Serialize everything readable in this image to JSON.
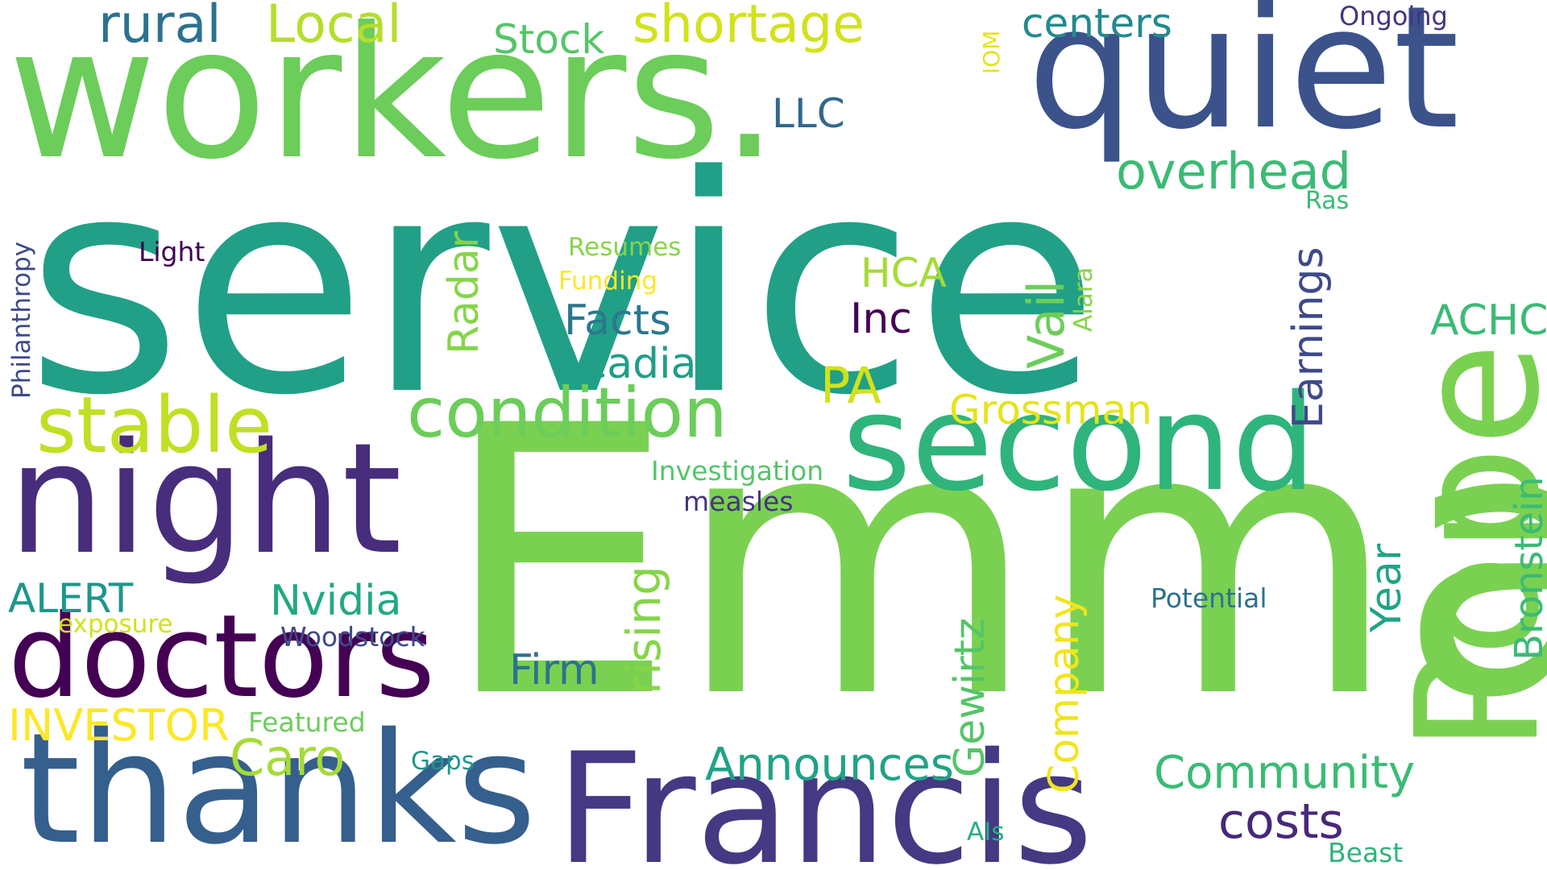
{
  "words": {
    "service": {
      "text": "service",
      "color": "#21a087"
    },
    "emma": {
      "text": "Emma",
      "color": "#7ad151"
    },
    "workers": {
      "text": "workers.",
      "color": "#6ccd5a"
    },
    "quiet": {
      "text": "quiet",
      "color": "#3b528b"
    },
    "night": {
      "text": "night",
      "color": "#472d7b"
    },
    "doctors": {
      "text": "doctors",
      "color": "#440154"
    },
    "thanks": {
      "text": "thanks",
      "color": "#355f8d"
    },
    "francis": {
      "text": "Francis",
      "color": "#443983"
    },
    "second": {
      "text": "second",
      "color": "#2fb47c"
    },
    "pope": {
      "text": "Pope",
      "color": "#7ad151"
    },
    "condition": {
      "text": "condition",
      "color": "#6ccd5a"
    },
    "stable": {
      "text": "stable",
      "color": "#c2df23"
    },
    "rural": {
      "text": "rural",
      "color": "#2c728e"
    },
    "local": {
      "text": "Local",
      "color": "#b5de2b"
    },
    "stock": {
      "text": "Stock",
      "color": "#54c568"
    },
    "shortage": {
      "text": "shortage",
      "color": "#d2e21b"
    },
    "centers": {
      "text": "centers",
      "color": "#23898e"
    },
    "ongoing": {
      "text": "Ongoing",
      "color": "#46337e"
    },
    "iom": {
      "text": "IOM",
      "color": "#e5e419"
    },
    "llc": {
      "text": "LLC",
      "color": "#31688e"
    },
    "overhead": {
      "text": "overhead",
      "color": "#3bbb75"
    },
    "ras": {
      "text": "Ras",
      "color": "#3bbb75"
    },
    "philanthropy": {
      "text": "Philanthropy",
      "color": "#3e4a89"
    },
    "light": {
      "text": "Light",
      "color": "#440154"
    },
    "resumes": {
      "text": "Resumes",
      "color": "#86d549"
    },
    "funding": {
      "text": "Funding",
      "color": "#fde725"
    },
    "radar": {
      "text": "Radar",
      "color": "#86d549"
    },
    "hca": {
      "text": "HCA",
      "color": "#a5db36"
    },
    "vail": {
      "text": "Vail",
      "color": "#6ccd5a"
    },
    "alara": {
      "text": "Alara",
      "color": "#86d549"
    },
    "earnings": {
      "text": "Earnings",
      "color": "#3e4a89"
    },
    "achc": {
      "text": "ACHC",
      "color": "#3bbb75"
    },
    "facts": {
      "text": "Facts",
      "color": "#2a788e"
    },
    "inc": {
      "text": "Inc",
      "color": "#440154"
    },
    "acadia": {
      "text": "Acadia",
      "color": "#1f9e89"
    },
    "pa": {
      "text": "PA",
      "color": "#d2e21b"
    },
    "grossman": {
      "text": "Grossman",
      "color": "#e5e419"
    },
    "bronstein": {
      "text": "Bronstein",
      "color": "#3bbb75"
    },
    "investigation": {
      "text": "Investigation",
      "color": "#54c568"
    },
    "measles": {
      "text": "measles",
      "color": "#46337e"
    },
    "rising": {
      "text": "rising",
      "color": "#86d549"
    },
    "alert": {
      "text": "ALERT",
      "color": "#1f968b"
    },
    "nvidia": {
      "text": "Nvidia",
      "color": "#22a884"
    },
    "exposure": {
      "text": "exposure",
      "color": "#d2e21b"
    },
    "woodstock": {
      "text": "Woodstock",
      "color": "#3e4a89"
    },
    "year": {
      "text": "Year",
      "color": "#20a386"
    },
    "potential": {
      "text": "Potential",
      "color": "#2c728e"
    },
    "gewirtz": {
      "text": "Gewirtz",
      "color": "#54c568"
    },
    "company": {
      "text": "Company",
      "color": "#f1e51d"
    },
    "firm": {
      "text": "Firm",
      "color": "#2c728e"
    },
    "investor": {
      "text": "INVESTOR",
      "color": "#fde725"
    },
    "featured": {
      "text": "Featured",
      "color": "#6ccd5a"
    },
    "caro": {
      "text": "Caro",
      "color": "#a5db36"
    },
    "announces": {
      "text": "Announces",
      "color": "#20a386"
    },
    "community": {
      "text": "Community",
      "color": "#3bbb75"
    },
    "gaps": {
      "text": "Gaps",
      "color": "#1f968b"
    },
    "costs": {
      "text": "costs",
      "color": "#482878"
    },
    "ais": {
      "text": "AIs",
      "color": "#26ad81"
    },
    "beast": {
      "text": "Beast",
      "color": "#2fb47c"
    }
  }
}
